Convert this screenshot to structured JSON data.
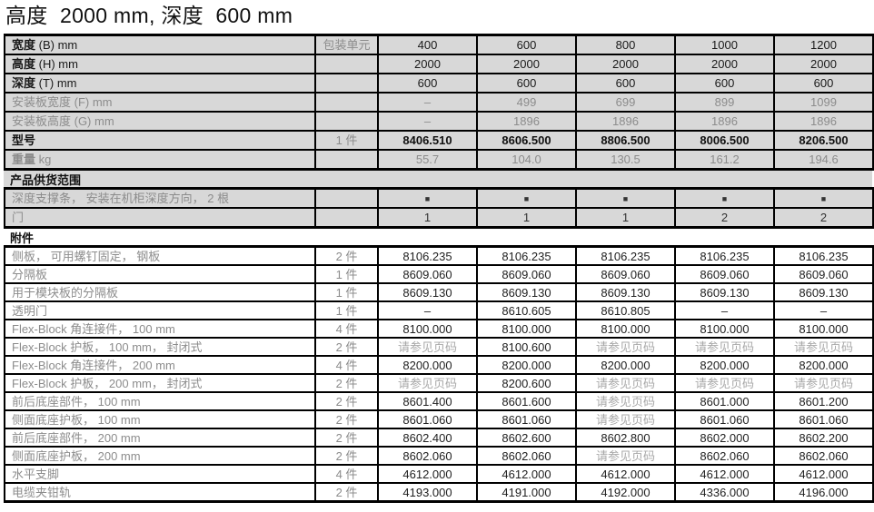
{
  "title": "高度  2000 mm, 深度  600 mm",
  "spec": {
    "rows": [
      {
        "label_bold": "宽度",
        "label_rest": " (B) mm",
        "unit": "包装单元",
        "style": "black",
        "values": [
          "400",
          "600",
          "800",
          "1000",
          "1200"
        ]
      },
      {
        "label_bold": "高度",
        "label_rest": " (H) mm",
        "unit": "",
        "style": "black",
        "values": [
          "2000",
          "2000",
          "2000",
          "2000",
          "2000"
        ]
      },
      {
        "label_bold": "深度",
        "label_rest": " (T) mm",
        "unit": "",
        "style": "black",
        "values": [
          "600",
          "600",
          "600",
          "600",
          "600"
        ]
      },
      {
        "label_bold": "",
        "label_rest": "安装板宽度 (F) mm",
        "unit": "",
        "style": "gray",
        "values": [
          "–",
          "499",
          "699",
          "899",
          "1099"
        ]
      },
      {
        "label_bold": "",
        "label_rest": "安装板高度 (G) mm",
        "unit": "",
        "style": "gray",
        "values": [
          "–",
          "1896",
          "1896",
          "1896",
          "1896"
        ]
      },
      {
        "label_bold": "型号",
        "label_rest": "",
        "unit": "1 件",
        "style": "model",
        "values": [
          "8406.510",
          "8606.500",
          "8806.500",
          "8006.500",
          "8206.500"
        ]
      },
      {
        "label_bold": "重量",
        "label_rest": " kg",
        "unit": "",
        "style": "gray",
        "values": [
          "55.7",
          "104.0",
          "130.5",
          "161.2",
          "194.6"
        ]
      }
    ]
  },
  "scope": {
    "header": "产品供货范围",
    "rows": [
      {
        "label_bold": "",
        "label_rest": "深度支撑条， 安装在机柜深度方向， 2 根",
        "unit": "",
        "style": "scope",
        "values": [
          "■",
          "■",
          "■",
          "■",
          "■"
        ]
      },
      {
        "label_bold": "",
        "label_rest": "门",
        "unit": "",
        "style": "scope",
        "values": [
          "1",
          "1",
          "1",
          "2",
          "2"
        ]
      }
    ]
  },
  "accessories": {
    "header": "附件",
    "rows": [
      {
        "label_bold": "",
        "label_rest": "侧板， 可用螺钉固定， 钢板",
        "unit": "2 件",
        "style": "acc",
        "values": [
          "8106.235",
          "8106.235",
          "8106.235",
          "8106.235",
          "8106.235"
        ]
      },
      {
        "label_bold": "",
        "label_rest": "分隔板",
        "unit": "1 件",
        "style": "acc",
        "values": [
          "8609.060",
          "8609.060",
          "8609.060",
          "8609.060",
          "8609.060"
        ]
      },
      {
        "label_bold": "",
        "label_rest": "用于模块板的分隔板",
        "unit": "1 件",
        "style": "acc",
        "values": [
          "8609.130",
          "8609.130",
          "8609.130",
          "8609.130",
          "8609.130"
        ]
      },
      {
        "label_bold": "",
        "label_rest": "透明门",
        "unit": "1 件",
        "style": "acc",
        "values": [
          "–",
          "8610.605",
          "8610.805",
          "–",
          "–"
        ]
      },
      {
        "label_bold": "",
        "label_rest": "Flex-Block 角连接件， 100 mm",
        "unit": "4 件",
        "style": "acc",
        "values": [
          "8100.000",
          "8100.000",
          "8100.000",
          "8100.000",
          "8100.000"
        ]
      },
      {
        "label_bold": "",
        "label_rest": "Flex-Block 护板， 100 mm， 封闭式",
        "unit": "2 件",
        "style": "acc",
        "values": [
          "请参见页码",
          "8100.600",
          "请参见页码",
          "请参见页码",
          "请参见页码"
        ]
      },
      {
        "label_bold": "",
        "label_rest": "Flex-Block 角连接件， 200 mm",
        "unit": "4 件",
        "style": "acc",
        "values": [
          "8200.000",
          "8200.000",
          "8200.000",
          "8200.000",
          "8200.000"
        ]
      },
      {
        "label_bold": "",
        "label_rest": "Flex-Block 护板， 200 mm， 封闭式",
        "unit": "2 件",
        "style": "acc",
        "values": [
          "请参见页码",
          "8200.600",
          "请参见页码",
          "请参见页码",
          "请参见页码"
        ]
      },
      {
        "label_bold": "",
        "label_rest": "前后底座部件， 100 mm",
        "unit": "2 件",
        "style": "acc",
        "values": [
          "8601.400",
          "8601.600",
          "请参见页码",
          "8601.000",
          "8601.200"
        ]
      },
      {
        "label_bold": "",
        "label_rest": "侧面底座护板， 100 mm",
        "unit": "2 件",
        "style": "acc",
        "values": [
          "8601.060",
          "8601.060",
          "请参见页码",
          "8601.060",
          "8601.060"
        ]
      },
      {
        "label_bold": "",
        "label_rest": "前后底座部件， 200 mm",
        "unit": "2 件",
        "style": "acc",
        "values": [
          "8602.400",
          "8602.600",
          "8602.800",
          "8602.000",
          "8602.200"
        ]
      },
      {
        "label_bold": "",
        "label_rest": "侧面底座护板， 200 mm",
        "unit": "2 件",
        "style": "acc",
        "values": [
          "8602.060",
          "8602.060",
          "请参见页码",
          "8602.060",
          "8602.060"
        ]
      },
      {
        "label_bold": "",
        "label_rest": "水平支脚",
        "unit": "4 件",
        "style": "acc",
        "values": [
          "4612.000",
          "4612.000",
          "4612.000",
          "4612.000",
          "4612.000"
        ]
      },
      {
        "label_bold": "",
        "label_rest": "电缆夹钳轨",
        "unit": "2 件",
        "style": "acc",
        "values": [
          "4193.000",
          "4191.000",
          "4192.000",
          "4336.000",
          "4196.000"
        ]
      }
    ]
  }
}
